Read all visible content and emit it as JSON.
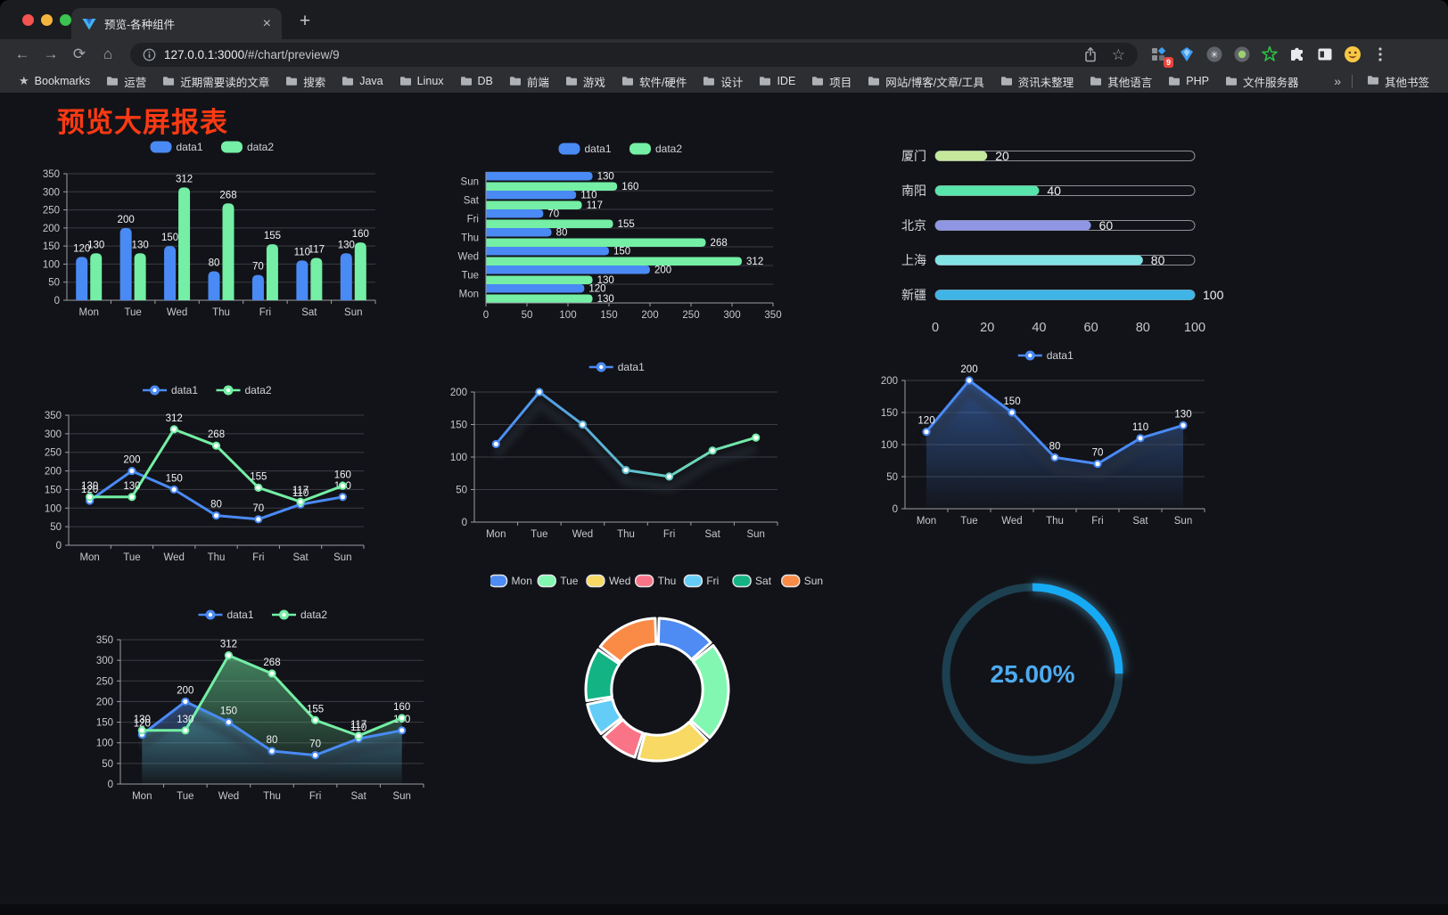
{
  "window": {
    "tab_title": "预览-各种组件",
    "tab_close": "×",
    "new_tab": "+"
  },
  "address_bar": {
    "host": "127.0.0.1:3000",
    "path": "/#/chart/preview/9"
  },
  "toolbar": {
    "back_icon": "←",
    "forward_icon": "→",
    "reload_icon": "⟳",
    "home_icon": "⌂",
    "star_icon": "☆",
    "menu_icon": "⋮",
    "extension_badge": "9",
    "extension_icons": [
      "proxy-grid-icon",
      "blue-gem-icon",
      "asterisk-circle-icon",
      "record-circle-icon",
      "green-star-icon",
      "puzzle-icon",
      "side-panel-icon",
      "avatar-emoji-icon",
      "menu-dots-icon"
    ]
  },
  "bookmarks": {
    "label": "Bookmarks",
    "items": [
      "运营",
      "近期需要读的文章",
      "搜索",
      "Java",
      "Linux",
      "DB",
      "前端",
      "游戏",
      "软件/硬件",
      "设计",
      "IDE",
      "项目",
      "网站/博客/文章/工具",
      "资讯未整理",
      "其他语言",
      "PHP",
      "文件服务器"
    ],
    "overflow": "»",
    "other_label": "其他书签"
  },
  "page": {
    "title": "预览大屏报表",
    "title_color": "#fb3a13"
  },
  "chart_data": [
    {
      "id": "bar-basic",
      "type": "bar",
      "categories": [
        "Mon",
        "Tue",
        "Wed",
        "Thu",
        "Fri",
        "Sat",
        "Sun"
      ],
      "series": [
        {
          "name": "data1",
          "color": "#4a8af4",
          "values": [
            120,
            200,
            150,
            80,
            70,
            110,
            130
          ]
        },
        {
          "name": "data2",
          "color": "#74efa5",
          "values": [
            130,
            130,
            312,
            268,
            155,
            117,
            160
          ]
        }
      ],
      "ylim": [
        0,
        350
      ],
      "ystep": 50,
      "legend_position": "top",
      "value_labels": true,
      "grid": true
    },
    {
      "id": "bar-horizontal",
      "type": "bar-horizontal",
      "categories": [
        "Mon",
        "Tue",
        "Wed",
        "Thu",
        "Fri",
        "Sat",
        "Sun"
      ],
      "display_order_top_to_bottom": [
        "Sun",
        "Sat",
        "Fri",
        "Thu",
        "Wed",
        "Tue",
        "Mon"
      ],
      "series": [
        {
          "name": "data1",
          "color": "#4a8af4",
          "values": [
            120,
            200,
            150,
            80,
            70,
            110,
            130
          ]
        },
        {
          "name": "data2",
          "color": "#74efa5",
          "values": [
            130,
            130,
            312,
            268,
            155,
            117,
            160
          ]
        }
      ],
      "xlim": [
        0,
        350
      ],
      "xstep": 50,
      "legend_position": "top",
      "value_labels": true,
      "grid": true
    },
    {
      "id": "progress",
      "type": "progress-bars",
      "rows": [
        {
          "label": "厦门",
          "value": 20,
          "color": "#c5e89b"
        },
        {
          "label": "南阳",
          "value": 40,
          "color": "#58e5ab"
        },
        {
          "label": "北京",
          "value": 60,
          "color": "#8f96e4"
        },
        {
          "label": "上海",
          "value": 80,
          "color": "#82e3e5"
        },
        {
          "label": "新疆",
          "value": 100,
          "color": "#3eb5e6"
        }
      ],
      "xlim": [
        0,
        100
      ],
      "xticks": [
        0,
        20,
        40,
        60,
        80,
        100
      ]
    },
    {
      "id": "line-basic",
      "type": "line",
      "categories": [
        "Mon",
        "Tue",
        "Wed",
        "Thu",
        "Fri",
        "Sat",
        "Sun"
      ],
      "series": [
        {
          "name": "data1",
          "color": "#4a8af4",
          "values": [
            120,
            200,
            150,
            80,
            70,
            110,
            130
          ]
        },
        {
          "name": "data2",
          "color": "#74efa5",
          "values": [
            130,
            130,
            312,
            268,
            155,
            117,
            160
          ]
        }
      ],
      "ylim": [
        0,
        350
      ],
      "ystep": 50,
      "legend_position": "top",
      "value_labels": true,
      "grid": true
    },
    {
      "id": "line-gradient",
      "type": "line",
      "categories": [
        "Mon",
        "Tue",
        "Wed",
        "Thu",
        "Fri",
        "Sat",
        "Sun"
      ],
      "series": [
        {
          "name": "data1",
          "gradient": [
            "#4a8af4",
            "#74efa5"
          ],
          "values": [
            120,
            200,
            150,
            80,
            70,
            110,
            130
          ]
        }
      ],
      "ylim": [
        0,
        200
      ],
      "ystep": 50,
      "legend_position": "top",
      "value_labels": false,
      "shadow": true,
      "grid": true
    },
    {
      "id": "area-basic",
      "type": "area",
      "categories": [
        "Mon",
        "Tue",
        "Wed",
        "Thu",
        "Fri",
        "Sat",
        "Sun"
      ],
      "series": [
        {
          "name": "data1",
          "color": "#4a8af4",
          "area": true,
          "values": [
            120,
            200,
            150,
            80,
            70,
            110,
            130
          ]
        }
      ],
      "ylim": [
        0,
        200
      ],
      "ystep": 50,
      "legend_position": "top",
      "value_labels": true,
      "shadow": true,
      "grid": true
    },
    {
      "id": "area-double",
      "type": "area",
      "categories": [
        "Mon",
        "Tue",
        "Wed",
        "Thu",
        "Fri",
        "Sat",
        "Sun"
      ],
      "series": [
        {
          "name": "data1",
          "color": "#4a8af4",
          "area": true,
          "values": [
            120,
            200,
            150,
            80,
            70,
            110,
            130
          ]
        },
        {
          "name": "data2",
          "color": "#74efa5",
          "area": true,
          "values": [
            130,
            130,
            312,
            268,
            155,
            117,
            160
          ]
        }
      ],
      "ylim": [
        0,
        350
      ],
      "ystep": 50,
      "legend_position": "top",
      "value_labels": true,
      "shadow": true,
      "grid": true
    },
    {
      "id": "donut",
      "type": "pie",
      "inner_radius_ratio": 0.64,
      "legend_position": "top",
      "slices": [
        {
          "label": "Mon",
          "value": 120,
          "color": "#4e8bf2"
        },
        {
          "label": "Tue",
          "value": 200,
          "color": "#82f7b1"
        },
        {
          "label": "Wed",
          "value": 150,
          "color": "#f7d963"
        },
        {
          "label": "Thu",
          "value": 80,
          "color": "#fa7487"
        },
        {
          "label": "Fri",
          "value": 70,
          "color": "#64cdf7"
        },
        {
          "label": "Sat",
          "value": 110,
          "color": "#13b384"
        },
        {
          "label": "Sun",
          "value": 130,
          "color": "#fa8b46"
        }
      ]
    },
    {
      "id": "gauge",
      "type": "gauge",
      "value": 25,
      "max": 100,
      "value_text": "25.00%",
      "arc_color": "#17aaf4",
      "track_color": "#1d4050",
      "text_color": "#4dabf0"
    }
  ]
}
